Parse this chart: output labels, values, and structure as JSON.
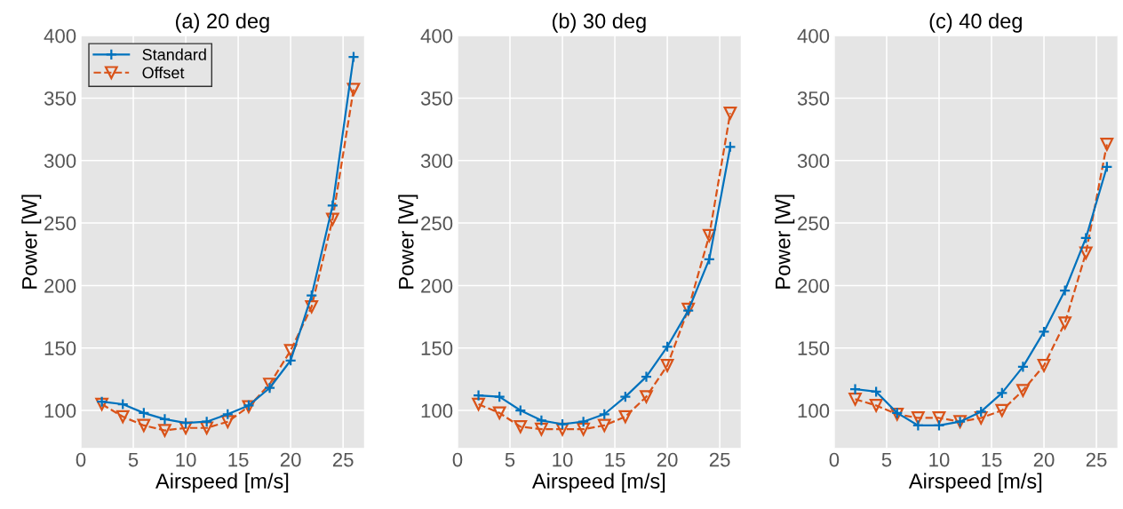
{
  "chart_data": [
    {
      "type": "line",
      "title": "(a) 20 deg",
      "xlabel": "Airspeed [m/s]",
      "ylabel": "Power [W]",
      "x": [
        2,
        4,
        6,
        8,
        10,
        12,
        14,
        16,
        18,
        20,
        22,
        24,
        26
      ],
      "xlim": [
        0,
        27
      ],
      "xticks": [
        0,
        5,
        10,
        15,
        20,
        25
      ],
      "ylim": [
        70,
        400
      ],
      "yticks": [
        100,
        150,
        200,
        250,
        300,
        350,
        400
      ],
      "grid": true,
      "legend": "top left",
      "series": [
        {
          "name": "Standard",
          "color": "#0072bd",
          "marker": "cross",
          "line_style": "solid",
          "values": [
            107,
            105,
            98,
            93,
            90,
            91,
            97,
            104,
            118,
            140,
            192,
            264,
            383
          ]
        },
        {
          "name": "Offset",
          "color": "#d95319",
          "marker": "triangle",
          "line_style": "dashed",
          "values": [
            105,
            95,
            88,
            84,
            86,
            86,
            91,
            103,
            121,
            148,
            183,
            253,
            357
          ]
        }
      ]
    },
    {
      "type": "line",
      "title": "(b) 30 deg",
      "xlabel": "Airspeed [m/s]",
      "ylabel": "Power [W]",
      "x": [
        2,
        4,
        6,
        8,
        10,
        12,
        14,
        16,
        18,
        20,
        22,
        24,
        26
      ],
      "xlim": [
        0,
        27
      ],
      "xticks": [
        0,
        5,
        10,
        15,
        20,
        25
      ],
      "ylim": [
        70,
        400
      ],
      "yticks": [
        100,
        150,
        200,
        250,
        300,
        350,
        400
      ],
      "grid": true,
      "series": [
        {
          "color": "#0072bd",
          "marker": "cross",
          "line_style": "solid",
          "values": [
            112,
            111,
            100,
            92,
            89,
            91,
            97,
            111,
            127,
            151,
            180,
            221,
            311
          ]
        },
        {
          "color": "#d95319",
          "marker": "triangle",
          "line_style": "dashed",
          "values": [
            105,
            98,
            87,
            85,
            85,
            85,
            88,
            95,
            111,
            136,
            181,
            240,
            338
          ]
        }
      ]
    },
    {
      "type": "line",
      "title": "(c) 40 deg",
      "xlabel": "Airspeed [m/s]",
      "ylabel": "Power [W]",
      "x": [
        2,
        4,
        6,
        8,
        10,
        12,
        14,
        16,
        18,
        20,
        22,
        24,
        26
      ],
      "xlim": [
        0,
        27
      ],
      "xticks": [
        0,
        5,
        10,
        15,
        20,
        25
      ],
      "ylim": [
        70,
        400
      ],
      "yticks": [
        100,
        150,
        200,
        250,
        300,
        350,
        400
      ],
      "grid": true,
      "series": [
        {
          "color": "#0072bd",
          "marker": "cross",
          "line_style": "solid",
          "values": [
            117,
            115,
            98,
            88,
            88,
            91,
            99,
            114,
            135,
            163,
            196,
            238,
            295
          ]
        },
        {
          "color": "#d95319",
          "marker": "triangle",
          "line_style": "dashed",
          "values": [
            109,
            104,
            97,
            94,
            94,
            91,
            94,
            100,
            116,
            136,
            170,
            226,
            313
          ]
        }
      ]
    }
  ]
}
